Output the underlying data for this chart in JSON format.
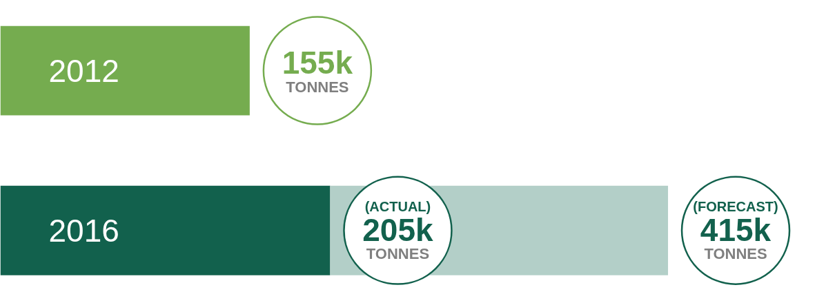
{
  "chart_data": {
    "type": "bar",
    "orientation": "horizontal",
    "categories": [
      "2012",
      "2016"
    ],
    "series": [
      {
        "colors": [
          "#75ac4f",
          "#12614d"
        ],
        "values": [
          155,
          205
        ],
        "value_labels": [
          "155k\nTONNES",
          "(ACTUAL)\n205k\nTONNES"
        ]
      },
      {
        "color": "#b3cfc8",
        "values": [
          null,
          210
        ]
      }
    ],
    "totals": [
      null,
      "(FORECAST)\n415k\nTONNES"
    ],
    "stacked": true,
    "xlim": [
      0,
      519
    ],
    "tick_labels": false,
    "grid": false
  }
}
